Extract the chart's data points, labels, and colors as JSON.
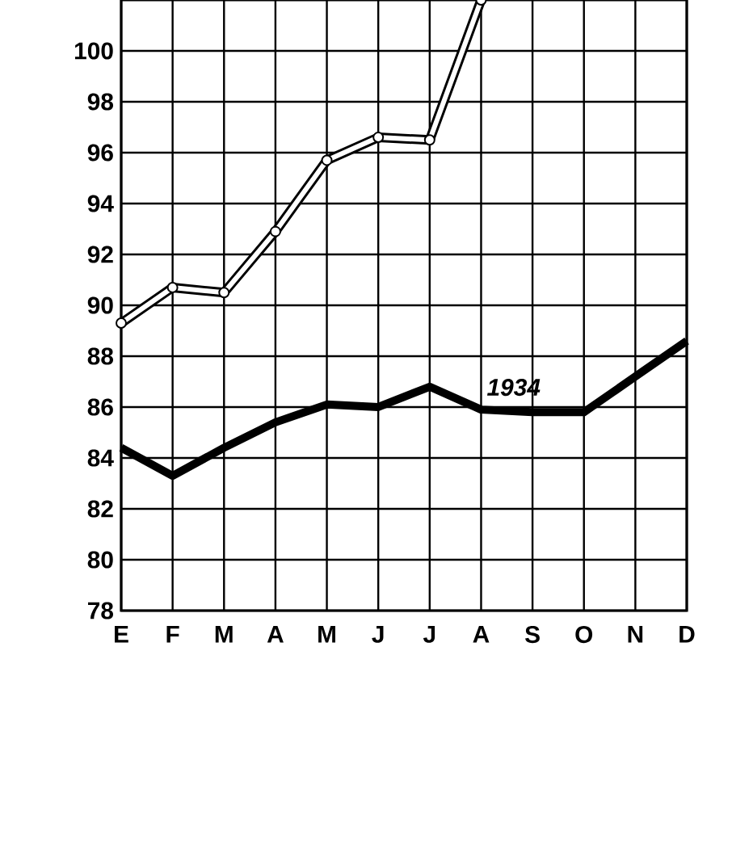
{
  "chart_data": {
    "type": "line",
    "categories": [
      "E",
      "F",
      "M",
      "A",
      "M",
      "J",
      "J",
      "A",
      "S",
      "O",
      "N",
      "D"
    ],
    "series": [
      {
        "color": "#000000",
        "marker": "circle",
        "values": [
          89.3,
          90.7,
          90.5,
          92.9,
          95.7,
          96.6,
          96.5,
          102,
          null,
          null,
          null,
          null
        ]
      },
      {
        "name": "1934",
        "color": "#000000",
        "marker": "none",
        "values": [
          84.4,
          83.3,
          84.4,
          85.4,
          86.1,
          86.0,
          86.8,
          85.9,
          85.8,
          85.8,
          87.2,
          88.6
        ]
      }
    ],
    "ylim": [
      78,
      102
    ],
    "yticks": [
      78,
      80,
      82,
      84,
      86,
      88,
      90,
      92,
      94,
      96,
      98,
      100
    ],
    "grid": true
  }
}
